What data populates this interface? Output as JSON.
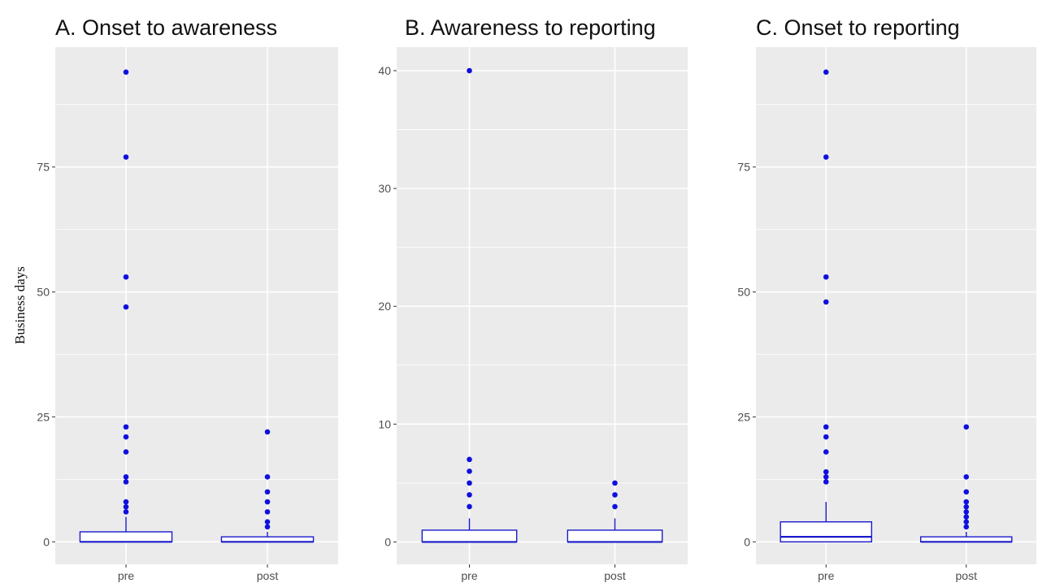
{
  "chart_data": {
    "type": "box",
    "ylabel": "Business days",
    "colors": {
      "panel_background": "#ebebeb",
      "grid": "#ffffff",
      "box": "#1a1acc",
      "outlier": "#1010dd"
    },
    "panels": [
      {
        "title": "A. Onset to awareness",
        "categories": [
          "pre",
          "post"
        ],
        "ylim": [
          -4.5,
          99
        ],
        "yticks": [
          0,
          25,
          50,
          75
        ],
        "ytick_labels": [
          "0",
          "25",
          "50",
          "75"
        ],
        "boxes": [
          {
            "category": "pre",
            "min": 0,
            "q1": 0,
            "median": 0,
            "q3": 2,
            "max": 5,
            "outliers": [
              94,
              77,
              53,
              47,
              23,
              21,
              18,
              13,
              12,
              8,
              7,
              6
            ]
          },
          {
            "category": "post",
            "min": 0,
            "q1": 0,
            "median": 0,
            "q3": 1,
            "max": 2,
            "outliers": [
              22,
              13,
              10,
              8,
              6,
              4,
              3
            ]
          }
        ]
      },
      {
        "title": "B. Awareness to reporting",
        "categories": [
          "pre",
          "post"
        ],
        "ylim": [
          -1.9,
          42
        ],
        "yticks": [
          0,
          10,
          20,
          30,
          40
        ],
        "ytick_labels": [
          "0",
          "10",
          "20",
          "30",
          "40"
        ],
        "boxes": [
          {
            "category": "pre",
            "min": 0,
            "q1": 0,
            "median": 0,
            "q3": 1,
            "max": 2,
            "outliers": [
              40,
              7,
              6,
              5,
              4,
              3
            ]
          },
          {
            "category": "post",
            "min": 0,
            "q1": 0,
            "median": 0,
            "q3": 1,
            "max": 2,
            "outliers": [
              5,
              4,
              3
            ]
          }
        ]
      },
      {
        "title": "C. Onset to reporting",
        "categories": [
          "pre",
          "post"
        ],
        "ylim": [
          -4.5,
          99
        ],
        "yticks": [
          0,
          25,
          50,
          75
        ],
        "ytick_labels": [
          "0",
          "25",
          "50",
          "75"
        ],
        "boxes": [
          {
            "category": "pre",
            "min": 0,
            "q1": 0,
            "median": 1,
            "q3": 4,
            "max": 8,
            "outliers": [
              94,
              77,
              53,
              48,
              23,
              21,
              18,
              14,
              13,
              12
            ]
          },
          {
            "category": "post",
            "min": 0,
            "q1": 0,
            "median": 0,
            "q3": 1,
            "max": 2,
            "outliers": [
              23,
              13,
              10,
              8,
              7,
              6,
              5,
              4,
              3
            ]
          }
        ]
      }
    ]
  }
}
